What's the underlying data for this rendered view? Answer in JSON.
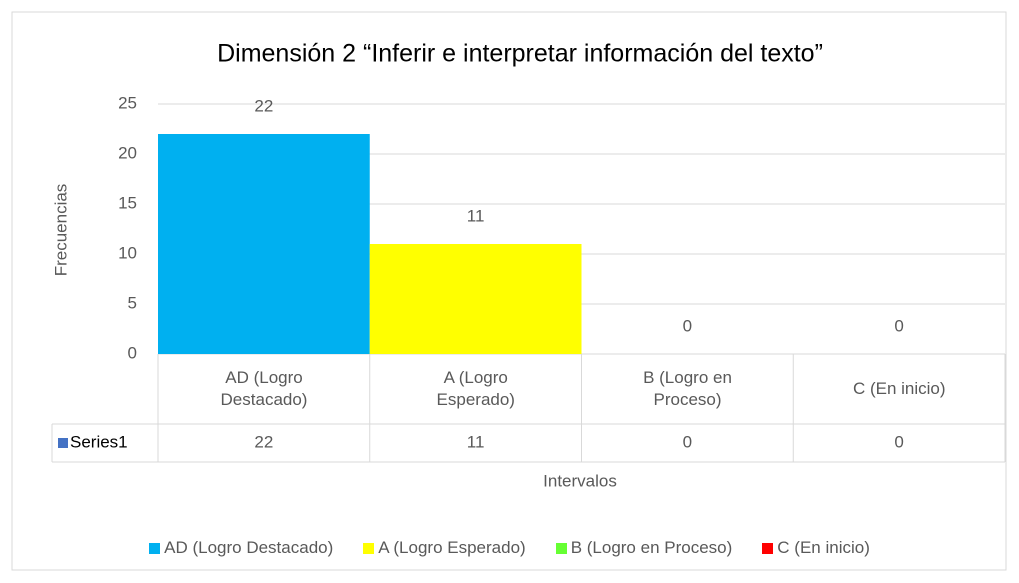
{
  "chart_data": {
    "type": "bar",
    "title": "Dimensión 2 “Inferir e interpretar información del texto”",
    "x_label": "Intervalos",
    "y_label": "Frecuencias",
    "categories": [
      "AD (Logro Destacado)",
      "A (Logro Esperado)",
      "B (Logro en Proceso)",
      "C (En inicio)"
    ],
    "series": [
      {
        "name": "Series1",
        "color": "#4472c4",
        "values": [
          22,
          11,
          0,
          0
        ]
      }
    ],
    "category_colors": [
      "#00b0f0",
      "#ffff00",
      "#66ff33",
      "#ff0000"
    ],
    "ylim": [
      0,
      25
    ],
    "yticks": [
      0,
      5,
      10,
      15,
      20,
      25
    ],
    "grid": true,
    "legend": "bottom"
  }
}
